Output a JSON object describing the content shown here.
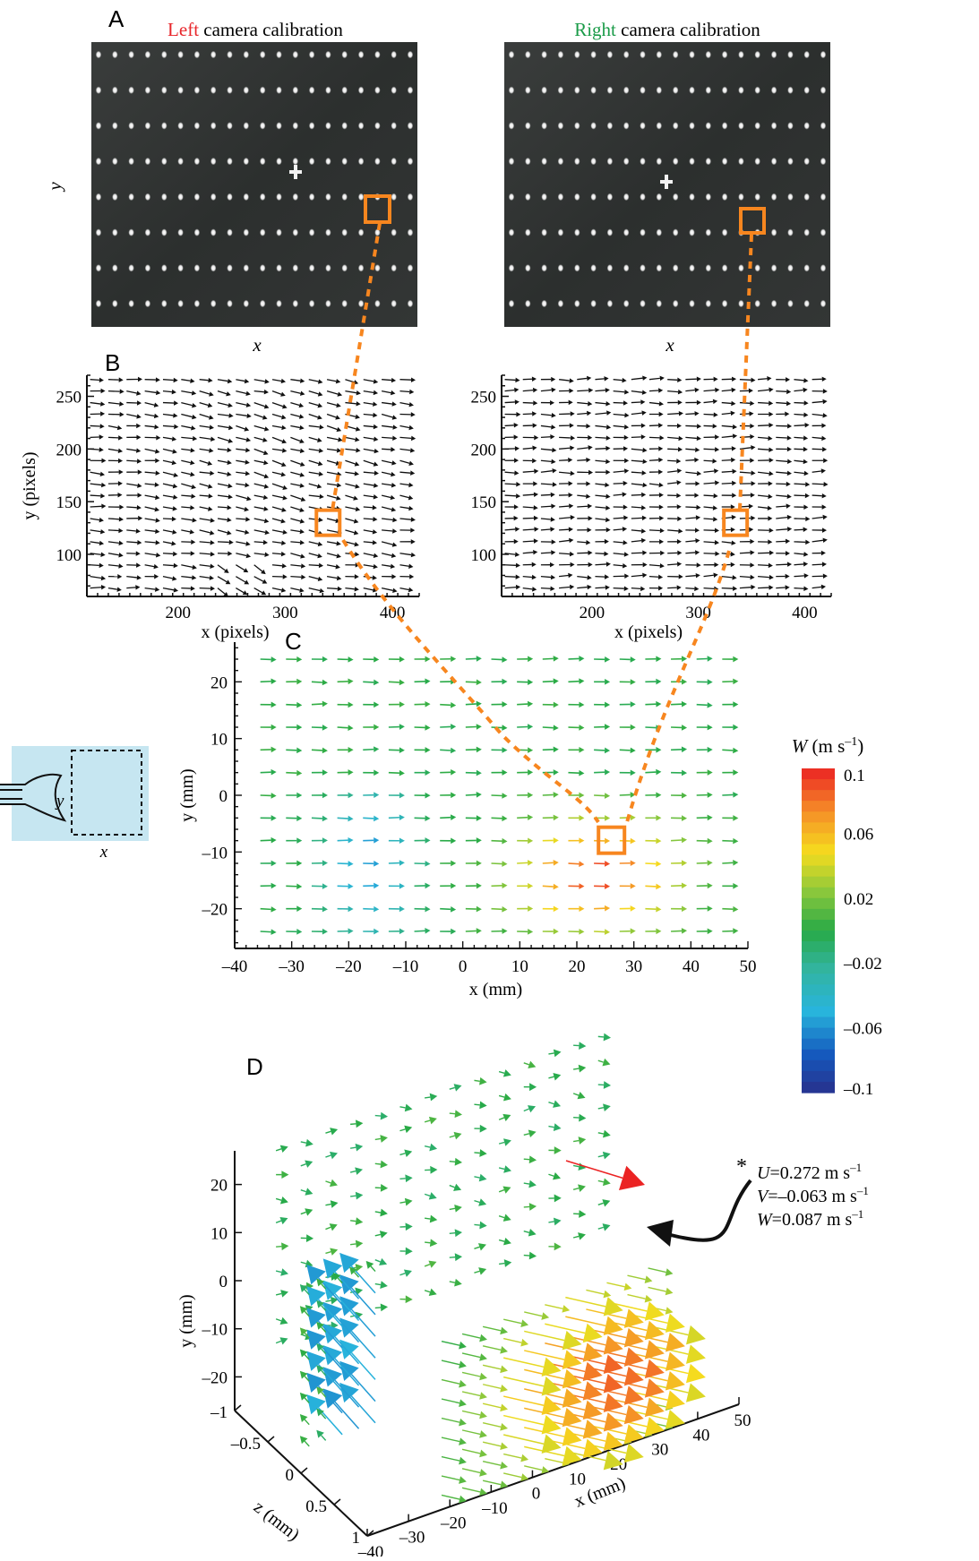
{
  "figure": {
    "colors": {
      "orange": "#f7861f",
      "left_red": "#e8262b",
      "right_green": "#1a9b48",
      "calib_bg": "#2f3231",
      "diagram_bg": "#c6e6f1"
    }
  },
  "panel_a": {
    "letter": "A",
    "left": {
      "title_colored": "Left",
      "title_rest": " camera calibration",
      "xlabel": "x",
      "ylabel": "y"
    },
    "right": {
      "title_colored": "Right",
      "title_rest": " camera calibration",
      "xlabel": "x"
    }
  },
  "panel_b": {
    "letter": "B"
  },
  "panel_c": {
    "letter": "C"
  },
  "panel_d": {
    "letter": "D",
    "asterisk": "*",
    "annotation": {
      "u": {
        "symbol": "U",
        "value": "=0.272 m s",
        "exp": "–1"
      },
      "v": {
        "symbol": "V",
        "value": "=–0.063 m s",
        "exp": "–1"
      },
      "w": {
        "symbol": "W",
        "value": "=0.087 m s",
        "exp": "–1"
      }
    }
  },
  "inset": {
    "xlabel": "x",
    "ylabel": "y"
  },
  "colorbar": {
    "label_symbol": "W",
    "label_unit": " (m s",
    "label_exp": "–1",
    "label_close": ")",
    "tick_labels": [
      "0.1",
      "0.06",
      "0.02",
      "–0.02",
      "–0.06",
      "–0.1"
    ]
  },
  "chart_data": [
    {
      "id": "A-left",
      "type": "image",
      "title": "Left camera calibration",
      "xlabel": "x",
      "ylabel": "y"
    },
    {
      "id": "A-right",
      "type": "image",
      "title": "Right camera calibration",
      "xlabel": "x",
      "ylabel": ""
    },
    {
      "id": "B-left",
      "type": "quiver",
      "xlabel": "x (pixels)",
      "ylabel": "y (pixels)",
      "xlim": [
        115,
        425
      ],
      "ylim": [
        60,
        270
      ],
      "xticks": [
        200,
        300,
        400
      ],
      "yticks": [
        100,
        150,
        200,
        250
      ],
      "grid": false,
      "highlight": {
        "x": 340,
        "y": 130
      }
    },
    {
      "id": "B-right",
      "type": "quiver",
      "xlabel": "x (pixels)",
      "ylabel": "",
      "xlim": [
        115,
        425
      ],
      "ylim": [
        60,
        270
      ],
      "xticks": [
        200,
        300,
        400
      ],
      "yticks": [
        100,
        150,
        200,
        250
      ],
      "grid": false,
      "highlight": {
        "x": 335,
        "y": 130
      }
    },
    {
      "id": "C",
      "type": "quiver",
      "xlabel": "x (mm)",
      "ylabel": "y (mm)",
      "xlim": [
        -40,
        50
      ],
      "ylim": [
        -27,
        27
      ],
      "xticks": [
        -40,
        -30,
        -20,
        -10,
        0,
        10,
        20,
        30,
        40,
        50
      ],
      "yticks": [
        -20,
        -10,
        0,
        10,
        20
      ],
      "grid": false,
      "color_variable": "W (m s–1)",
      "highlight": {
        "x": 26,
        "y": -8
      }
    },
    {
      "id": "D",
      "type": "quiver3d",
      "xlabel": "x (mm)",
      "ylabel": "y (mm)",
      "zlabel": "z (mm)",
      "xticks": [
        -40,
        -30,
        -20,
        -10,
        0,
        10,
        20,
        30,
        40,
        50
      ],
      "yticks": [
        -20,
        -10,
        0,
        10,
        20
      ],
      "zticks": [
        -1,
        -0.5,
        0,
        0.5,
        1
      ],
      "highlighted_vector": {
        "U": 0.272,
        "V": -0.063,
        "W": 0.087,
        "unit": "m s–1"
      }
    },
    {
      "id": "colorbar",
      "type": "colorbar",
      "variable": "W",
      "unit": "m s–1",
      "range": [
        -0.1,
        0.1
      ],
      "ticks": [
        0.1,
        0.06,
        0.02,
        -0.02,
        -0.06,
        -0.1
      ]
    }
  ]
}
